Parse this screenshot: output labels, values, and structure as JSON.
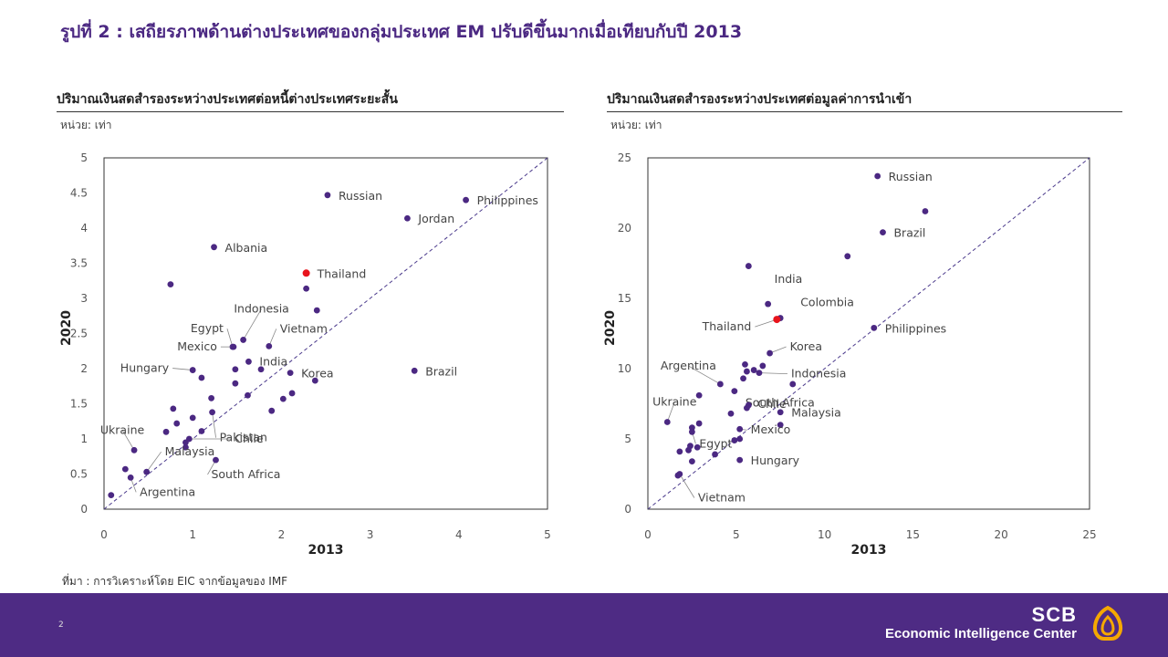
{
  "header": {
    "title": "รูปที่ 2 : เสถียรภาพด้านต่างประเทศของกลุ่มประเทศ EM ปรับดีขึ้นมากเมื่อเทียบกับปี 2013"
  },
  "source": "ที่มา : การวิเคราะห์โดย EIC จากข้อมูลของ IMF",
  "footer": {
    "page_number": "2",
    "brand_line1": "SCB",
    "brand_line2": "Economic Intelligence Center",
    "bg_color": "#4e2b84"
  },
  "colors": {
    "point": "#4b2882",
    "highlight": "#e8141c",
    "diagonal": "#4b3a8c"
  },
  "chart_data": [
    {
      "type": "scatter",
      "title": "ปริมาณเงินสดสำรองระหว่างประเทศต่อหนี้ต่างประเทศระยะสั้น",
      "unit": "หน่วย: เท่า",
      "xlabel": "2013",
      "ylabel": "2020",
      "xlim": [
        0,
        5
      ],
      "ylim": [
        0,
        5
      ],
      "xticks": [
        "0",
        "1",
        "2",
        "3",
        "4",
        "5"
      ],
      "yticks": [
        "0",
        "0.5",
        "1",
        "1.5",
        "2",
        "2.5",
        "3",
        "3.5",
        "4",
        "4.5",
        "5"
      ],
      "reference_line": "y = x (dashed)",
      "points": [
        {
          "x": 2.52,
          "y": 4.47,
          "label": "Russian"
        },
        {
          "x": 4.08,
          "y": 4.4,
          "label": "Philippines"
        },
        {
          "x": 3.42,
          "y": 4.14,
          "label": "Jordan"
        },
        {
          "x": 1.24,
          "y": 3.73,
          "label": "Albania"
        },
        {
          "x": 2.28,
          "y": 3.36,
          "label": "Thailand",
          "highlight": true
        },
        {
          "x": 0.75,
          "y": 3.2
        },
        {
          "x": 2.28,
          "y": 3.14
        },
        {
          "x": 2.4,
          "y": 2.83
        },
        {
          "x": 1.57,
          "y": 2.41,
          "label": "Indonesia"
        },
        {
          "x": 1.45,
          "y": 2.31,
          "label": "Egypt"
        },
        {
          "x": 1.86,
          "y": 2.32,
          "label": "Vietnam"
        },
        {
          "x": 1.46,
          "y": 2.31,
          "label": "Mexico"
        },
        {
          "x": 1.63,
          "y": 2.1,
          "label": "India"
        },
        {
          "x": 1.0,
          "y": 1.98,
          "label": "Hungary"
        },
        {
          "x": 1.48,
          "y": 1.99
        },
        {
          "x": 1.77,
          "y": 1.99
        },
        {
          "x": 2.1,
          "y": 1.94,
          "label": "Korea"
        },
        {
          "x": 3.5,
          "y": 1.97,
          "label": "Brazil"
        },
        {
          "x": 1.1,
          "y": 1.87
        },
        {
          "x": 1.48,
          "y": 1.79
        },
        {
          "x": 2.38,
          "y": 1.83
        },
        {
          "x": 2.12,
          "y": 1.65
        },
        {
          "x": 1.62,
          "y": 1.62
        },
        {
          "x": 2.02,
          "y": 1.57
        },
        {
          "x": 1.21,
          "y": 1.58
        },
        {
          "x": 0.78,
          "y": 1.43
        },
        {
          "x": 1.22,
          "y": 1.38,
          "label": "Pakistan"
        },
        {
          "x": 1.89,
          "y": 1.4
        },
        {
          "x": 1.0,
          "y": 1.3
        },
        {
          "x": 0.82,
          "y": 1.22
        },
        {
          "x": 0.7,
          "y": 1.1
        },
        {
          "x": 1.1,
          "y": 1.11
        },
        {
          "x": 0.96,
          "y": 1.0,
          "label": "Chile"
        },
        {
          "x": 0.92,
          "y": 0.95
        },
        {
          "x": 0.92,
          "y": 0.88
        },
        {
          "x": 0.34,
          "y": 0.84,
          "label": "Ukraine"
        },
        {
          "x": 1.26,
          "y": 0.7,
          "label": "South Africa"
        },
        {
          "x": 0.24,
          "y": 0.57
        },
        {
          "x": 0.48,
          "y": 0.53,
          "label": "Malaysia"
        },
        {
          "x": 0.3,
          "y": 0.45,
          "label": "Argentina"
        },
        {
          "x": 0.08,
          "y": 0.2
        }
      ]
    },
    {
      "type": "scatter",
      "title": "ปริมาณเงินสดสำรองระหว่างประเทศต่อมูลค่าการนำเข้า",
      "unit": "หน่วย: เท่า",
      "xlabel": "2013",
      "ylabel": "2020",
      "xlim": [
        0,
        25
      ],
      "ylim": [
        0,
        25
      ],
      "xticks": [
        "0",
        "5",
        "10",
        "15",
        "20",
        "25"
      ],
      "yticks": [
        "0",
        "5",
        "10",
        "15",
        "20",
        "25"
      ],
      "reference_line": "y = x (dashed)",
      "points": [
        {
          "x": 13.0,
          "y": 23.7,
          "label": "Russian"
        },
        {
          "x": 15.7,
          "y": 21.2
        },
        {
          "x": 13.3,
          "y": 19.7,
          "label": "Brazil"
        },
        {
          "x": 11.3,
          "y": 18.0
        },
        {
          "x": 5.7,
          "y": 17.3
        },
        {
          "x": 6.8,
          "y": 14.6,
          "label": "India"
        },
        {
          "x": 7.5,
          "y": 13.6,
          "label": "Colombia"
        },
        {
          "x": 7.3,
          "y": 13.5,
          "label": "Thailand",
          "highlight": true
        },
        {
          "x": 12.8,
          "y": 12.9,
          "label": "Philippines"
        },
        {
          "x": 6.9,
          "y": 11.1,
          "label": "Korea"
        },
        {
          "x": 5.5,
          "y": 10.3
        },
        {
          "x": 6.5,
          "y": 10.2
        },
        {
          "x": 5.6,
          "y": 9.8
        },
        {
          "x": 6.0,
          "y": 9.9
        },
        {
          "x": 6.3,
          "y": 9.7,
          "label": "Indonesia"
        },
        {
          "x": 5.4,
          "y": 9.3
        },
        {
          "x": 4.1,
          "y": 8.9,
          "label": "Argentina"
        },
        {
          "x": 8.2,
          "y": 8.9
        },
        {
          "x": 4.9,
          "y": 8.4,
          "label": "South Africa"
        },
        {
          "x": 2.9,
          "y": 8.1
        },
        {
          "x": 5.7,
          "y": 7.4
        },
        {
          "x": 5.6,
          "y": 7.2,
          "label": "Chile"
        },
        {
          "x": 7.5,
          "y": 6.9,
          "label": "Malaysia"
        },
        {
          "x": 4.7,
          "y": 6.8
        },
        {
          "x": 1.1,
          "y": 6.2,
          "label": "Ukraine"
        },
        {
          "x": 2.9,
          "y": 6.1
        },
        {
          "x": 7.5,
          "y": 6.0
        },
        {
          "x": 2.5,
          "y": 5.8
        },
        {
          "x": 5.2,
          "y": 5.7,
          "label": "Mexico"
        },
        {
          "x": 2.5,
          "y": 5.5,
          "label": "Egypt"
        },
        {
          "x": 5.2,
          "y": 5.0
        },
        {
          "x": 4.9,
          "y": 4.9
        },
        {
          "x": 2.4,
          "y": 4.5
        },
        {
          "x": 2.8,
          "y": 4.4
        },
        {
          "x": 2.3,
          "y": 4.2
        },
        {
          "x": 1.8,
          "y": 4.1
        },
        {
          "x": 3.8,
          "y": 3.9
        },
        {
          "x": 5.2,
          "y": 3.5,
          "label": "Hungary"
        },
        {
          "x": 2.5,
          "y": 3.4
        },
        {
          "x": 1.8,
          "y": 2.5,
          "label": "Vietnam"
        },
        {
          "x": 1.7,
          "y": 2.4
        }
      ]
    }
  ]
}
